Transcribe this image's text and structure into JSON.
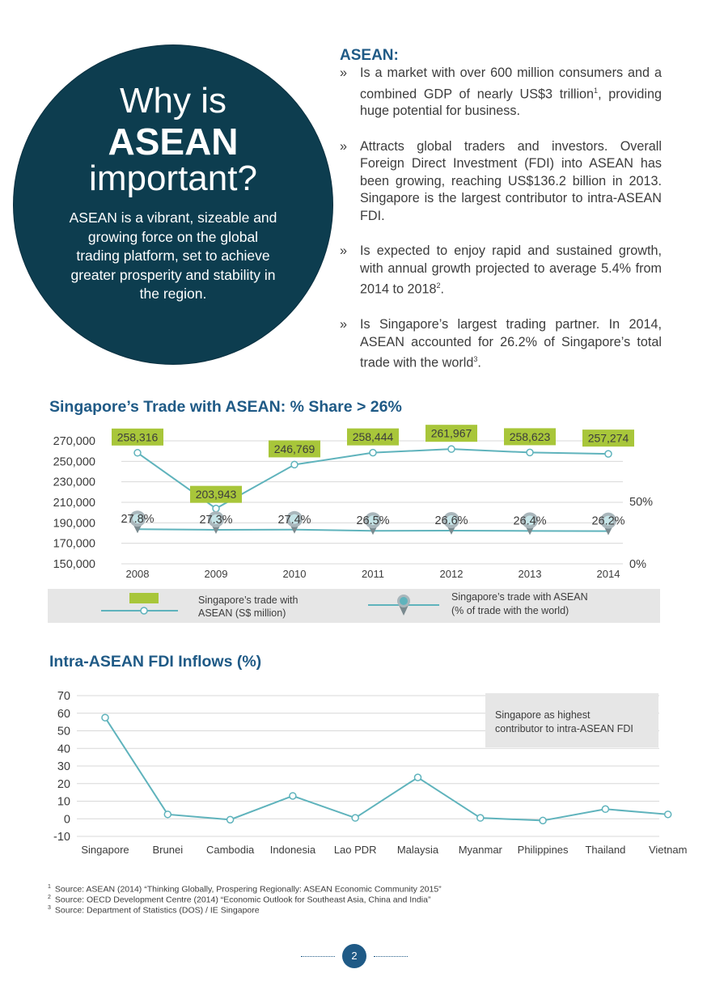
{
  "hero": {
    "line1": "Why is",
    "line2": "ASEAN",
    "line3": "important?",
    "description": "ASEAN is a vibrant, sizeable and growing force on the global trading platform, set to achieve greater prosperity and stability in the region."
  },
  "asean_heading": "ASEAN:",
  "bullet_mark": "»",
  "bullets": [
    {
      "text": "Is a market with over 600 million consumers and a combined GDP of nearly US$3 trillion",
      "sup": "1",
      "tail": ", providing huge potential for business."
    },
    {
      "text": "Attracts global traders and investors. Overall Foreign Direct Investment (FDI) into ASEAN has been growing, reaching US$136.2 billion in 2013. Singapore is the largest contributor to intra-ASEAN FDI.",
      "sup": "",
      "tail": ""
    },
    {
      "text": "Is expected to enjoy rapid and sustained growth, with annual growth projected to average 5.4% from 2014 to 2018",
      "sup": "2",
      "tail": "."
    },
    {
      "text": "Is Singapore’s largest trading partner. In 2014, ASEAN accounted for 26.2% of Singapore’s total trade with the world",
      "sup": "3",
      "tail": "."
    }
  ],
  "colors": {
    "navy": "#0d3d4f",
    "blue_heading": "#1f5a86",
    "teal": "#5fb3bc",
    "lime": "#a8c63a",
    "legend_bg": "#e6e6e6"
  },
  "chart_data": [
    {
      "type": "line",
      "title": "Singapore’s Trade with ASEAN: % Share > 26%",
      "categories": [
        "2008",
        "2009",
        "2010",
        "2011",
        "2012",
        "2013",
        "2014"
      ],
      "series": [
        {
          "name": "Singapore’s trade with ASEAN (S$ million)",
          "axis": "left",
          "values": [
            258316,
            203943,
            246769,
            258444,
            261967,
            258623,
            257274
          ],
          "labels": [
            "258,316",
            "203,943",
            "246,769",
            "258,444",
            "261,967",
            "258,623",
            "257,274"
          ]
        },
        {
          "name": "Singapore’s trade with ASEAN (% of trade with the world)",
          "axis": "right",
          "values": [
            27.8,
            27.3,
            27.4,
            26.5,
            26.6,
            26.4,
            26.2
          ],
          "labels": [
            "27.8%",
            "27.3%",
            "27.4%",
            "26.5%",
            "26.6%",
            "26.4%",
            "26.2%"
          ]
        }
      ],
      "y_left": {
        "ticks": [
          "270,000",
          "250,000",
          "230,000",
          "210,000",
          "190,000",
          "170,000",
          "150,000"
        ],
        "range": [
          150000,
          270000
        ]
      },
      "y_right": {
        "ticks": [
          "50%",
          "0%"
        ],
        "range": [
          0,
          100
        ]
      },
      "legend": [
        {
          "line1": "Singapore’s trade with",
          "line2": "ASEAN (S$ million)"
        },
        {
          "line1": "Singapore’s trade with ASEAN",
          "line2": "(% of trade with the world)"
        }
      ],
      "legend_position": "bottom",
      "grid": true
    },
    {
      "type": "line",
      "title": "Intra-ASEAN FDI Inflows (%)",
      "categories": [
        "Singapore",
        "Brunei",
        "Cambodia",
        "Indonesia",
        "Lao PDR",
        "Malaysia",
        "Myanmar",
        "Philippines",
        "Thailand",
        "Vietnam"
      ],
      "values": [
        57.5,
        2.5,
        -0.5,
        13,
        0.5,
        23.5,
        0.5,
        -1,
        5.5,
        2.5
      ],
      "y_ticks": [
        "70",
        "60",
        "50",
        "40",
        "30",
        "20",
        "10",
        "0",
        "-10"
      ],
      "ylim": [
        -10,
        70
      ],
      "annotation": {
        "line1": "Singapore as highest",
        "line2": "contributor to intra-ASEAN FDI"
      },
      "grid": true
    }
  ],
  "footnotes": [
    {
      "num": "1",
      "text": "Source: ASEAN (2014) “Thinking Globally, Prospering Regionally: ASEAN Economic Community 2015”"
    },
    {
      "num": "2",
      "text": "Source: OECD Development Centre (2014) “Economic Outlook for Southeast Asia, China and India”"
    },
    {
      "num": "3",
      "text": "Source: Department of Statistics (DOS) / IE Singapore"
    }
  ],
  "page_number": "2"
}
